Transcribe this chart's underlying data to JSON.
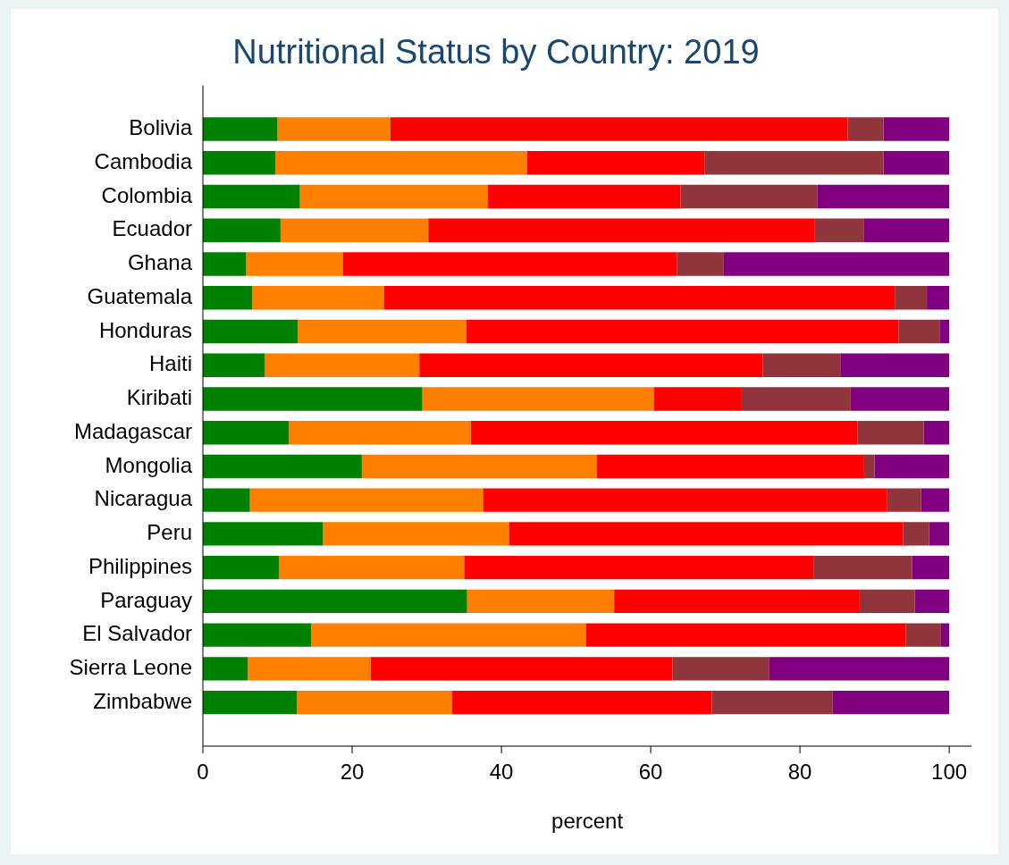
{
  "chart_data": {
    "type": "bar",
    "orientation": "horizontal",
    "stacked": true,
    "title": "Nutritional Status by Country: 2019",
    "xlabel": "percent",
    "categories": [
      "Bolivia",
      "Cambodia",
      "Colombia",
      "Ecuador",
      "Ghana",
      "Guatemala",
      "Honduras",
      "Haiti",
      "Kiribati",
      "Madagascar",
      "Mongolia",
      "Nicaragua",
      "Peru",
      "Philippines",
      "Paraguay",
      "El Salvador",
      "Sierra Leone",
      "Zimbabwe"
    ],
    "series": [
      {
        "color": "#008000",
        "values": [
          10,
          9.7,
          13,
          10.4,
          5.8,
          6.6,
          12.7,
          8.3,
          29.4,
          11.5,
          21.3,
          6.3,
          16.1,
          10.2,
          35.4,
          14.5,
          6,
          12.6
        ]
      },
      {
        "color": "#ff7f00",
        "values": [
          15.1,
          33.7,
          25.2,
          19.8,
          13,
          17.7,
          22.6,
          20.7,
          31,
          24.4,
          31.5,
          31.3,
          24.9,
          24.8,
          19.7,
          36.8,
          16.5,
          20.8
        ]
      },
      {
        "color": "#ff0000",
        "values": [
          61.3,
          23.8,
          25.8,
          51.8,
          44.7,
          68.4,
          57.9,
          46,
          11.8,
          51.8,
          35.8,
          54.1,
          52.8,
          46.8,
          32.9,
          42.9,
          40.4,
          34.8
        ]
      },
      {
        "color": "#90353b",
        "values": [
          4.8,
          24,
          18.3,
          6.6,
          6.3,
          4.3,
          5.5,
          10.4,
          14.6,
          8.9,
          1.4,
          4.5,
          3.5,
          13.2,
          7.4,
          4.7,
          13,
          16.2
        ]
      },
      {
        "color": "#800080",
        "values": [
          8.8,
          8.8,
          17.7,
          11.4,
          30.2,
          3,
          1.3,
          14.6,
          13.2,
          3.4,
          10,
          3.8,
          2.7,
          5,
          4.6,
          1.1,
          24.1,
          15.6
        ]
      }
    ],
    "xlim": [
      0,
      103
    ],
    "xticks": [
      0,
      20,
      40,
      60,
      80,
      100
    ],
    "grid": false,
    "legend": false
  }
}
